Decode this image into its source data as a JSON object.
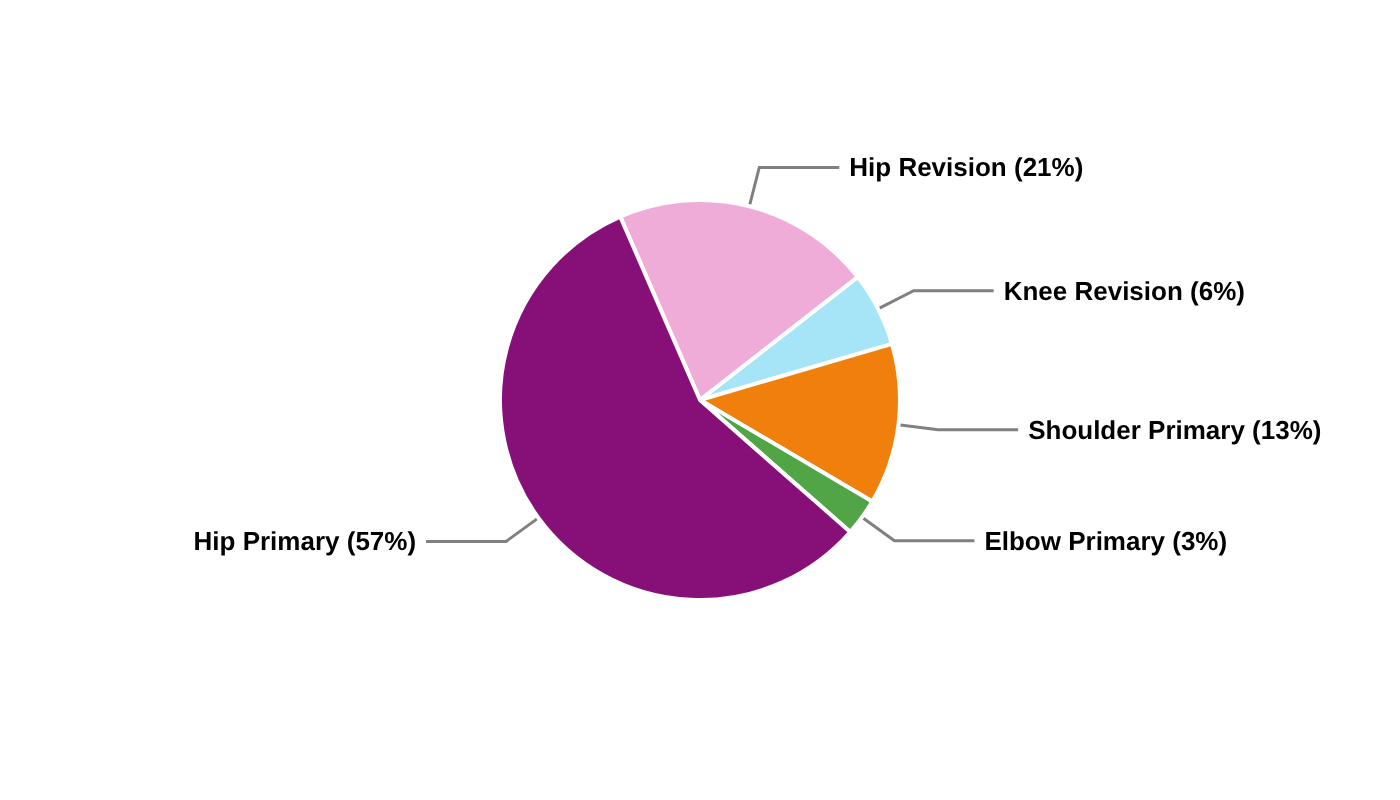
{
  "chart_data": {
    "type": "pie",
    "categories": [
      "Hip Revision",
      "Knee Revision",
      "Shoulder Primary",
      "Elbow Primary",
      "Hip Primary"
    ],
    "values": [
      21,
      6,
      13,
      3,
      57
    ],
    "colors": [
      "#f0acd8",
      "#a6e4f8",
      "#f07f0b",
      "#52a546",
      "#871078"
    ],
    "value_labels": [
      "(21%)",
      "(6%)",
      "(13%)",
      "(3%)",
      "(57%)"
    ],
    "legend": false
  }
}
